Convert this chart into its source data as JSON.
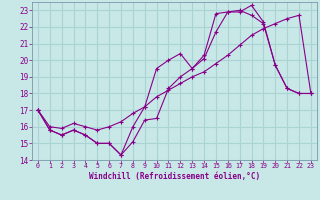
{
  "xlabel": "Windchill (Refroidissement éolien,°C)",
  "ylabel": "",
  "xlim": [
    -0.5,
    23.5
  ],
  "ylim": [
    14,
    23.5
  ],
  "yticks": [
    14,
    15,
    16,
    17,
    18,
    19,
    20,
    21,
    22,
    23
  ],
  "xticks": [
    0,
    1,
    2,
    3,
    4,
    5,
    6,
    7,
    8,
    9,
    10,
    11,
    12,
    13,
    14,
    15,
    16,
    17,
    18,
    19,
    20,
    21,
    22,
    23
  ],
  "bg_color": "#c8e8e8",
  "grid_color": "#aad4d4",
  "line_color": "#880088",
  "line1_x": [
    0,
    1,
    2,
    3,
    4,
    5,
    6,
    7,
    8,
    9,
    10,
    11,
    12,
    13,
    14,
    15,
    16,
    17,
    18,
    19,
    20,
    21,
    22,
    23
  ],
  "line1_y": [
    17.0,
    15.8,
    15.5,
    15.8,
    15.5,
    15.0,
    15.0,
    14.3,
    15.1,
    16.4,
    16.5,
    18.3,
    19.0,
    19.5,
    20.1,
    21.7,
    22.9,
    22.9,
    23.3,
    22.3,
    19.7,
    18.3,
    18.0,
    18.0
  ],
  "line2_x": [
    0,
    1,
    2,
    3,
    4,
    5,
    6,
    7,
    8,
    9,
    10,
    11,
    12,
    13,
    14,
    15,
    16,
    17,
    18,
    19,
    20,
    21,
    22,
    23
  ],
  "line2_y": [
    17.0,
    16.0,
    15.9,
    16.2,
    16.0,
    15.8,
    16.0,
    16.3,
    16.8,
    17.2,
    17.8,
    18.2,
    18.6,
    19.0,
    19.3,
    19.8,
    20.3,
    20.9,
    21.5,
    21.9,
    22.2,
    22.5,
    22.7,
    18.0
  ],
  "line3_x": [
    0,
    1,
    2,
    3,
    4,
    5,
    6,
    7,
    8,
    9,
    10,
    11,
    12,
    13,
    14,
    15,
    16,
    17,
    18,
    19,
    20,
    21,
    22,
    23
  ],
  "line3_y": [
    17.0,
    15.8,
    15.5,
    15.8,
    15.5,
    15.0,
    15.0,
    14.3,
    16.0,
    17.2,
    19.5,
    20.0,
    20.4,
    19.5,
    20.3,
    22.8,
    22.9,
    23.0,
    22.7,
    22.2,
    19.7,
    18.3,
    18.0,
    18.0
  ]
}
